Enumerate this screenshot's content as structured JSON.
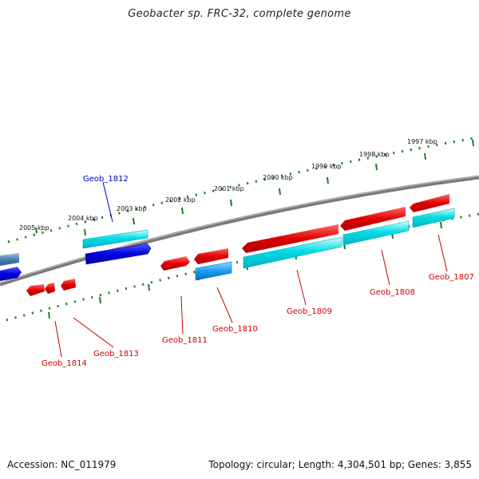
{
  "title": "Geobacter sp. FRC-32, complete genome",
  "accession": "Accession: NC_011979",
  "summary": "Topology: circular; Length: 4,304,501 bp; Genes: 3,855",
  "colors": {
    "backbone": "#777777",
    "ruler": "#1f7a1f",
    "forward_primary": "#e00000",
    "forward_alt": "#ff4444",
    "reverse_primary": "#00d8e0",
    "blue_gene": "#0000e0",
    "steel_gene": "#4a7fb0",
    "label_red": "#cc0000",
    "label_blue": "#0000cc"
  },
  "kbp_labels": [
    "1997 kbp",
    "1998 kbp",
    "1999 kbp",
    "2000 kbp",
    "2001 kbp",
    "2002 kbp",
    "2003 kbp",
    "2004 kbp",
    "2005 kbp"
  ],
  "gene_labels": [
    {
      "text": "Geob_1807",
      "color": "red"
    },
    {
      "text": "Geob_1808",
      "color": "red"
    },
    {
      "text": "Geob_1809",
      "color": "red"
    },
    {
      "text": "Geob_1810",
      "color": "red"
    },
    {
      "text": "Geob_1811",
      "color": "red"
    },
    {
      "text": "Geob_1812",
      "color": "blue"
    },
    {
      "text": "Geob_1813",
      "color": "red"
    },
    {
      "text": "Geob_1814",
      "color": "red"
    }
  ]
}
